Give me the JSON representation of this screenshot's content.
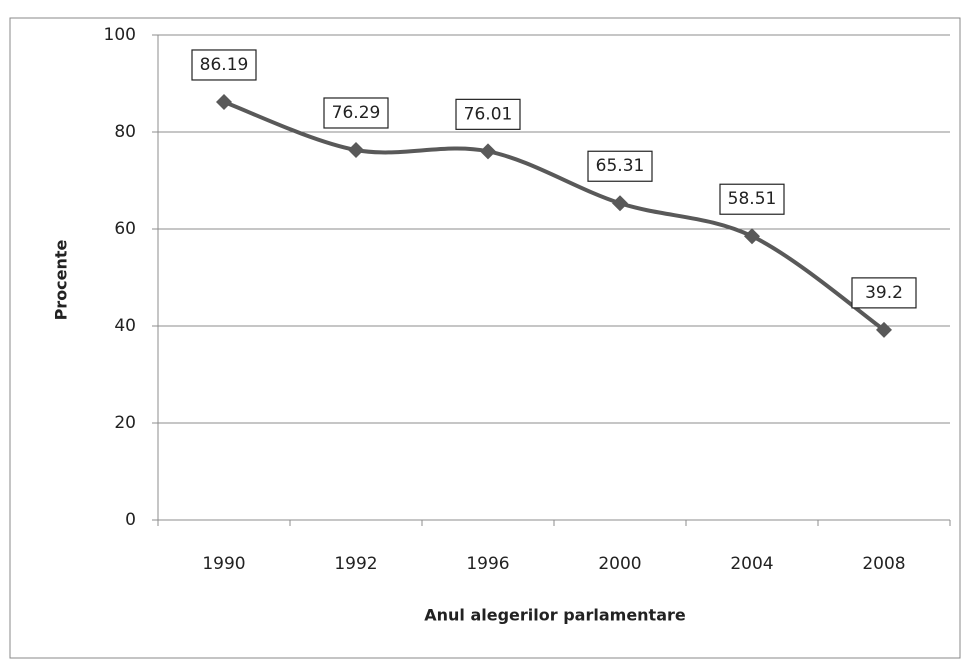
{
  "chart_data": {
    "type": "line",
    "x_label": "Anul alegerilor parlamentare",
    "y_label": "Procente",
    "categories": [
      "1990",
      "1992",
      "1996",
      "2000",
      "2004",
      "2008"
    ],
    "series": [
      {
        "color": "#595959",
        "values": [
          86.19,
          76.29,
          76.01,
          65.31,
          58.51,
          39.2
        ]
      }
    ],
    "ylim": [
      0,
      100
    ],
    "yticks": [
      0,
      20,
      40,
      60,
      80,
      100
    ],
    "grid": true
  }
}
